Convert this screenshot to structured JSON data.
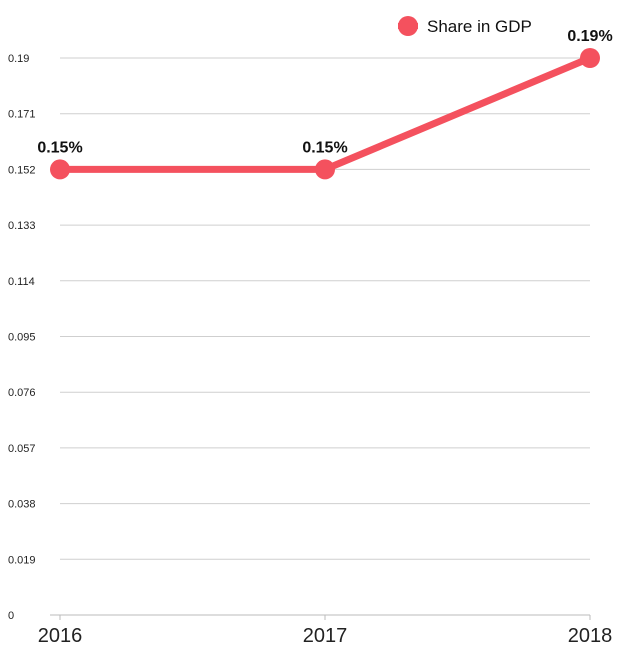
{
  "chart_data": {
    "type": "line",
    "categories": [
      "2016",
      "2017",
      "2018"
    ],
    "series": [
      {
        "name": "Share in GDP",
        "values": [
          0.152,
          0.152,
          0.19
        ],
        "labels": [
          "0.15%",
          "0.15%",
          "0.19%"
        ],
        "color": "#f4515e"
      }
    ],
    "yticks": [
      "0",
      "0.019",
      "0.038",
      "0.057",
      "0.076",
      "0.095",
      "0.114",
      "0.133",
      "0.152",
      "0.171",
      "0.19"
    ],
    "ylim": [
      0,
      0.19
    ],
    "grid": true,
    "legend_position": "top-right"
  }
}
